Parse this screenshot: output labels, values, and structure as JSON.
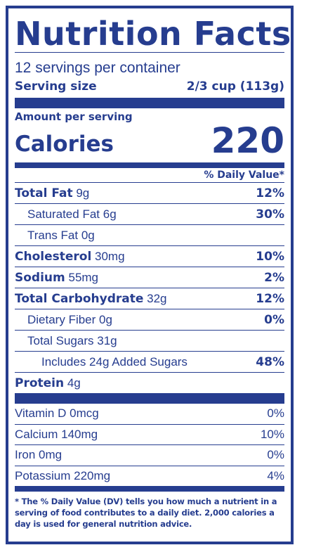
{
  "label": {
    "title": "Nutrition Facts",
    "servings_per_container": "12 servings per container",
    "serving_size_label": "Serving size",
    "serving_size_value": "2/3 cup (113g)",
    "amount_per_serving": "Amount per serving",
    "calories_label": "Calories",
    "calories_value": "220",
    "daily_value_header": "% Daily Value*",
    "nutrients": [
      {
        "name": "Total Fat",
        "amount": "9g",
        "dv": "12%"
      },
      {
        "name": "Saturated Fat",
        "amount": "6g",
        "dv": "30%"
      },
      {
        "name": "Trans Fat",
        "amount": "0g",
        "dv": ""
      },
      {
        "name": "Cholesterol",
        "amount": "30mg",
        "dv": "10%"
      },
      {
        "name": "Sodium",
        "amount": "55mg",
        "dv": "2%"
      },
      {
        "name": "Total Carbohydrate",
        "amount": "32g",
        "dv": "12%"
      },
      {
        "name": "Dietary Fiber",
        "amount": "0g",
        "dv": "0%"
      },
      {
        "name": "Total Sugars",
        "amount": "31g",
        "dv": ""
      },
      {
        "name": "Includes 24g Added Sugars",
        "amount": "",
        "dv": "48%"
      },
      {
        "name": "Protein",
        "amount": "4g",
        "dv": ""
      }
    ],
    "vitamins": [
      {
        "name": "Vitamin D",
        "amount": "0mcg",
        "dv": "0%"
      },
      {
        "name": "Calcium",
        "amount": "140mg",
        "dv": "10%"
      },
      {
        "name": "Iron",
        "amount": "0mg",
        "dv": "0%"
      },
      {
        "name": "Potassium",
        "amount": "220mg",
        "dv": "4%"
      }
    ],
    "footnote_bold": "* The % Daily Value (DV)",
    "footnote_rest": " tells you how much a nutrient in a serving of food contributes to a daily diet. 2,000 calories a day is used for general nutrition advice."
  },
  "colors": {
    "accent": "#263d8f",
    "background": "#ffffff"
  }
}
